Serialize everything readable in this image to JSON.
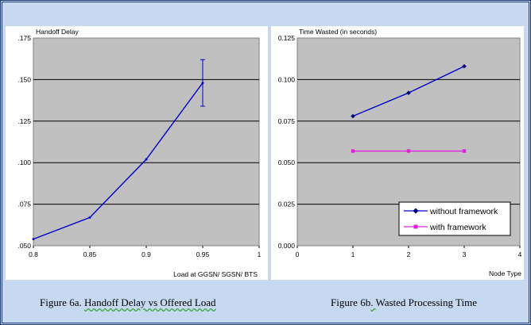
{
  "colors": {
    "frame_bg": "#c6d9f1",
    "frame_border": "#1f3a73",
    "panel_bg": "#ffffff",
    "plot_bg": "#c0c0c0",
    "gridline": "#000000",
    "series_blue": "#0000cc",
    "series_magenta": "#e020e0"
  },
  "chart_data": [
    {
      "type": "line",
      "title": "Handoff Delay",
      "xlabel": "Load at GGSN/ SGSN/ BTS",
      "ylabel": "",
      "xlim": [
        0.8,
        1.0
      ],
      "ylim": [
        0.05,
        0.175
      ],
      "x_ticks": [
        "0.8",
        "0.85",
        "0.9",
        "0.95",
        "1"
      ],
      "y_ticks": [
        ".050",
        ".075",
        ".100",
        ".125",
        ".150",
        ".175"
      ],
      "grid": "horizontal",
      "series": [
        {
          "x": [
            0.8,
            0.85,
            0.9,
            0.95
          ],
          "y": [
            0.054,
            0.067,
            0.102,
            0.148
          ],
          "error_bars": [
            null,
            null,
            null,
            [
              0.134,
              0.162
            ]
          ]
        }
      ]
    },
    {
      "type": "line",
      "title": "Time Wasted (in seconds)",
      "xlabel": "Node Type",
      "ylabel": "",
      "xlim": [
        0,
        4
      ],
      "ylim": [
        0.0,
        0.125
      ],
      "x_ticks": [
        "0",
        "1",
        "2",
        "3",
        "4"
      ],
      "y_ticks": [
        "0.000",
        "0.025",
        "0.050",
        "0.075",
        "0.100",
        "0.125"
      ],
      "grid": "horizontal",
      "legend_position": "bottom-right",
      "series": [
        {
          "name": "without framework",
          "marker": "diamond",
          "x": [
            1,
            2,
            3
          ],
          "y": [
            0.078,
            0.092,
            0.108
          ]
        },
        {
          "name": "with framework",
          "marker": "square",
          "x": [
            1,
            2,
            3
          ],
          "y": [
            0.057,
            0.057,
            0.057
          ]
        }
      ]
    }
  ],
  "captions": {
    "a_prefix": "Figure 6a. ",
    "a_underlined": "Handoff Delay vs Offered Load",
    "b_prefix": "Figure 6b",
    "b_underlined": ". ",
    "b_suffix": "Wasted Processing Time"
  }
}
